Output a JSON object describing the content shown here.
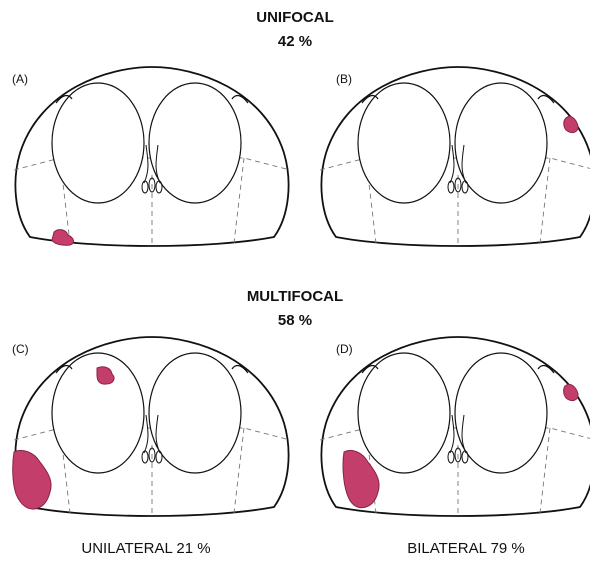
{
  "unifocal": {
    "title": "UNIFOCAL",
    "percent": "42 %"
  },
  "multifocal": {
    "title": "MULTIFOCAL",
    "percent": "58 %"
  },
  "panels": [
    "(A)",
    "(B)",
    "(C)",
    "(D)"
  ],
  "footer": [
    "UNILATERAL 21 %",
    "BILATERAL 79 %"
  ]
}
